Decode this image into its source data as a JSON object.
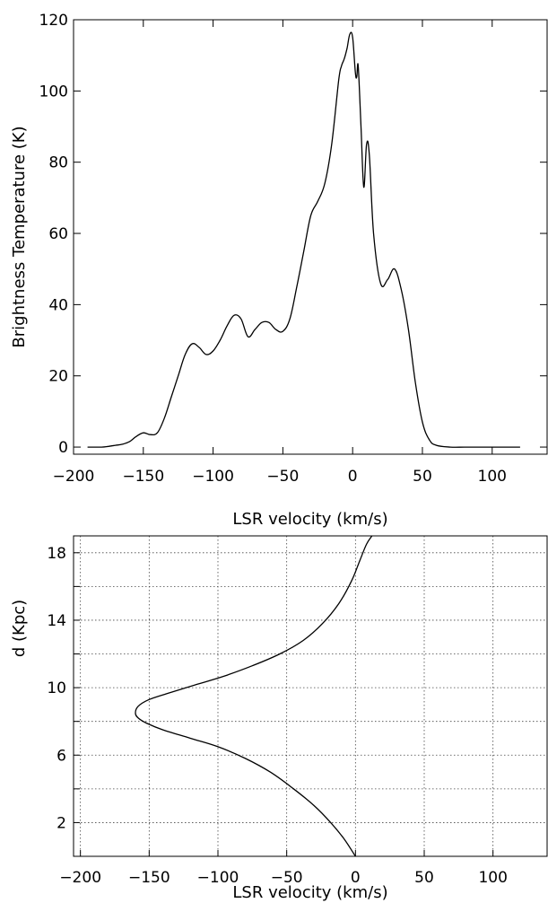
{
  "chart_data": [
    {
      "type": "line",
      "title": "",
      "xlabel": "LSR velocity (km/s)",
      "ylabel": "Brightness Temperature (K)",
      "xlim": [
        -200,
        140
      ],
      "ylim": [
        -2,
        120
      ],
      "xticks": [
        -200,
        -150,
        -100,
        -50,
        0,
        50,
        100
      ],
      "yticks": [
        0,
        20,
        40,
        60,
        80,
        100,
        120
      ],
      "grid": false,
      "series": [
        {
          "name": "",
          "x": [
            -190,
            -180,
            -175,
            -170,
            -165,
            -160,
            -155,
            -150,
            -145,
            -140,
            -135,
            -130,
            -125,
            -120,
            -115,
            -110,
            -105,
            -100,
            -95,
            -90,
            -85,
            -80,
            -75,
            -70,
            -65,
            -60,
            -55,
            -50,
            -45,
            -40,
            -35,
            -30,
            -25,
            -20,
            -15,
            -10,
            -8,
            -6,
            -4,
            -2,
            0,
            2,
            3,
            4,
            6,
            8,
            10,
            12,
            15,
            20,
            25,
            30,
            35,
            40,
            45,
            50,
            55,
            60,
            70,
            80,
            90,
            100,
            110,
            120
          ],
          "y": [
            0,
            0,
            0.2,
            0.5,
            0.8,
            1.5,
            3,
            4,
            3.5,
            4,
            8,
            14,
            20,
            26,
            29,
            28,
            26,
            27,
            30,
            34,
            37,
            36,
            31,
            33,
            35,
            35,
            33,
            32.5,
            36,
            45,
            55,
            65,
            69,
            74,
            85,
            103,
            107,
            109,
            112,
            116,
            115,
            105,
            104,
            107,
            90,
            73,
            85,
            82,
            60,
            46,
            47,
            50,
            44,
            33,
            18,
            7,
            2,
            0.5,
            0,
            0,
            0,
            0,
            0,
            0
          ]
        }
      ]
    },
    {
      "type": "line",
      "title": "",
      "xlabel": "LSR velocity (km/s)",
      "ylabel": "d (Kpc)",
      "xlim": [
        -205,
        140
      ],
      "ylim": [
        0,
        19
      ],
      "xticks": [
        -200,
        -150,
        -100,
        -50,
        0,
        50,
        100
      ],
      "yticks": [
        2,
        6,
        10,
        14,
        18
      ],
      "grid": true,
      "series": [
        {
          "name": "",
          "x": [
            0,
            -8,
            -18,
            -30,
            -45,
            -62,
            -80,
            -100,
            -120,
            -140,
            -152,
            -158,
            -160,
            -158,
            -150,
            -135,
            -115,
            -95,
            -75,
            -55,
            -38,
            -24,
            -12,
            -3,
            3,
            8,
            12
          ],
          "y": [
            0,
            1,
            2,
            3,
            4,
            5,
            5.8,
            6.5,
            7,
            7.5,
            7.9,
            8.2,
            8.5,
            8.9,
            9.3,
            9.7,
            10.2,
            10.7,
            11.3,
            12,
            12.8,
            13.8,
            15,
            16.3,
            17.5,
            18.5,
            19
          ]
        }
      ]
    }
  ]
}
